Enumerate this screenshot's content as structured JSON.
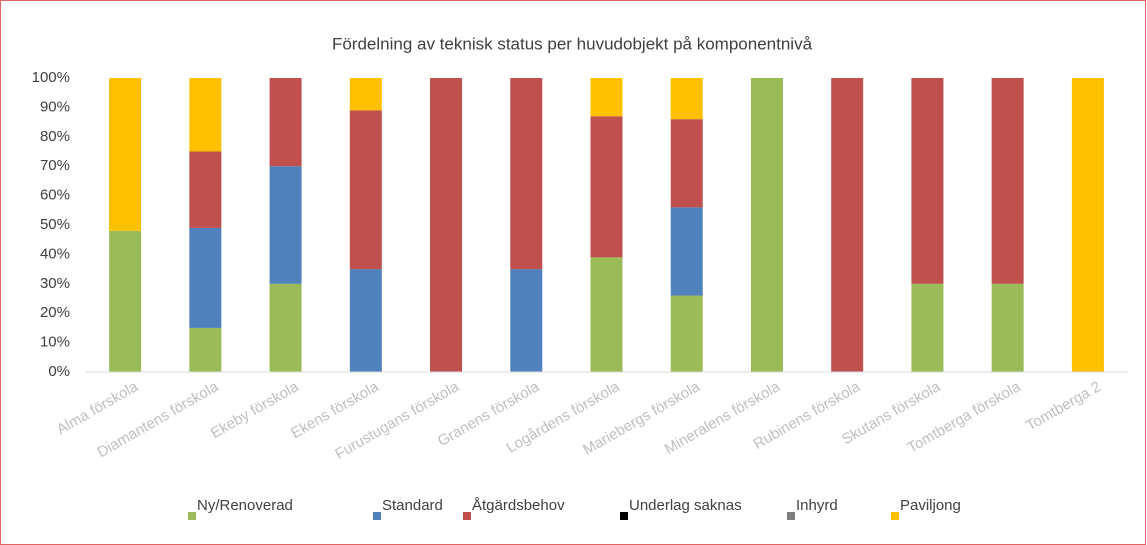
{
  "chart_data": {
    "type": "stacked_bar",
    "title": "Fördelning av teknisk status per huvudobjekt på komponentnivå",
    "categories": [
      "Alma förskola",
      "Diamantens förskola",
      "Ekeby förskola",
      "Ekens förskola",
      "Furustugans förskola",
      "Granens förskola",
      "Logårdens förskola",
      "Mariebergs förskola",
      "Mineralens förskola",
      "Rubinens förskola",
      "Skutans förskola",
      "Tomtberga förskola",
      "Tomtberga 2"
    ],
    "series": [
      {
        "name": "Ny/Renoverad",
        "color": "#9bbb59",
        "values": [
          48,
          15,
          30,
          0,
          0,
          0,
          39,
          26,
          100,
          0,
          30,
          30,
          0
        ]
      },
      {
        "name": "Standard",
        "color": "#4f81bd",
        "values": [
          0,
          34,
          40,
          35,
          0,
          35,
          0,
          30,
          0,
          0,
          0,
          0,
          0
        ]
      },
      {
        "name": "Åtgärdsbehov",
        "color": "#c0504d",
        "values": [
          0,
          26,
          30,
          54,
          100,
          65,
          48,
          30,
          0,
          100,
          70,
          70,
          0
        ]
      },
      {
        "name": "Underlag saknas",
        "color": "#000000",
        "values": [
          0,
          0,
          0,
          0,
          0,
          0,
          0,
          0,
          0,
          0,
          0,
          0,
          0
        ]
      },
      {
        "name": "Inhyrd",
        "color": "#7f7f7f",
        "values": [
          0,
          0,
          0,
          0,
          0,
          0,
          0,
          0,
          0,
          0,
          0,
          0,
          0
        ]
      },
      {
        "name": "Paviljong",
        "color": "#ffc000",
        "values": [
          52,
          25,
          0,
          11,
          0,
          0,
          13,
          14,
          0,
          0,
          0,
          0,
          100
        ]
      }
    ],
    "ylim": [
      0,
      100
    ],
    "yticks": [
      {
        "value": 0,
        "label": "0%"
      },
      {
        "value": 10,
        "label": "10%"
      },
      {
        "value": 20,
        "label": "20%"
      },
      {
        "value": 30,
        "label": "30%"
      },
      {
        "value": 40,
        "label": "40%"
      },
      {
        "value": 50,
        "label": "50%"
      },
      {
        "value": 60,
        "label": "60%"
      },
      {
        "value": 70,
        "label": "70%"
      },
      {
        "value": 80,
        "label": "80%"
      },
      {
        "value": 90,
        "label": "90%"
      },
      {
        "value": 100,
        "label": "100%"
      }
    ],
    "grid": false,
    "legend": "bottom"
  }
}
